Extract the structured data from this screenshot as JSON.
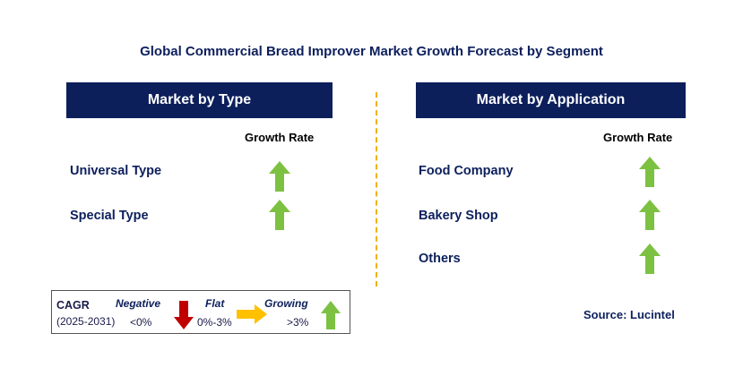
{
  "title": "Global Commercial Bread Improver Market Growth Forecast by Segment",
  "left_panel": {
    "header": "Market by Type",
    "growth_header": "Growth Rate",
    "rows": [
      {
        "label": "Universal Type",
        "trend": "growing"
      },
      {
        "label": "Special Type",
        "trend": "growing"
      }
    ]
  },
  "right_panel": {
    "header": "Market by Application",
    "growth_header": "Growth Rate",
    "rows": [
      {
        "label": "Food Company",
        "trend": "growing"
      },
      {
        "label": "Bakery Shop",
        "trend": "growing"
      },
      {
        "label": "Others",
        "trend": "growing"
      }
    ]
  },
  "legend": {
    "cagr_label": "CAGR",
    "period": "(2025-2031)",
    "negative": {
      "label": "Negative",
      "range": "<0%"
    },
    "flat": {
      "label": "Flat",
      "range": "0%-3%"
    },
    "growing": {
      "label": "Growing",
      "range": ">3%"
    }
  },
  "source": "Source: Lucintel",
  "colors": {
    "header_bg": "#0c1f5b",
    "title_text": "#0d1f5c",
    "growing_arrow": "#7dc142",
    "negative_arrow": "#c00000",
    "flat_arrow": "#ffc000",
    "divider": "#f2b100"
  }
}
